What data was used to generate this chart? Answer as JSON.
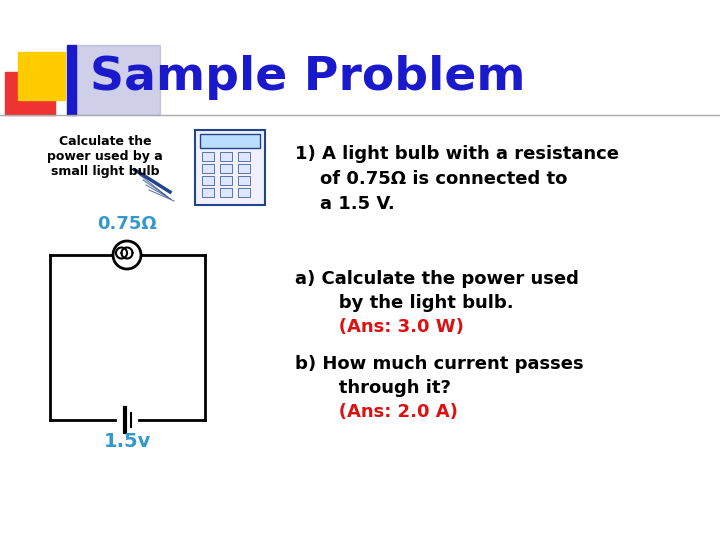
{
  "title": "Sample Problem",
  "title_color": "#1a1acc",
  "title_fontsize": 34,
  "background_color": "#ffffff",
  "small_text": "Calculate the\npower used by a\nsmall light bulb",
  "label_omega": "0.75Ω",
  "label_omega_color": "#3399cc",
  "label_voltage": "1.5v",
  "label_voltage_color": "#3399cc",
  "line1": "1) A light bulb with a resistance",
  "line2": "    of 0.75Ω is connected to",
  "line3": "    a 1.5 V.",
  "problem_a1": "a) Calculate the power used",
  "problem_a2": "       by the light bulb.",
  "answer_a": "       (Ans: 3.0 W)",
  "problem_b1": "b) How much current passes",
  "problem_b2": "       through it?",
  "answer_b": "       (Ans: 2.0 A)",
  "answer_color": "#dd1111",
  "text_color": "#000000",
  "accent_yellow": "#ffcc00",
  "accent_red": "#ee3333",
  "accent_blue_dark": "#1a1acc",
  "accent_blue_light": "#8888cc",
  "separator_color": "#aaaaaa",
  "circuit_color": "#000000",
  "bulb_color": "#000000"
}
